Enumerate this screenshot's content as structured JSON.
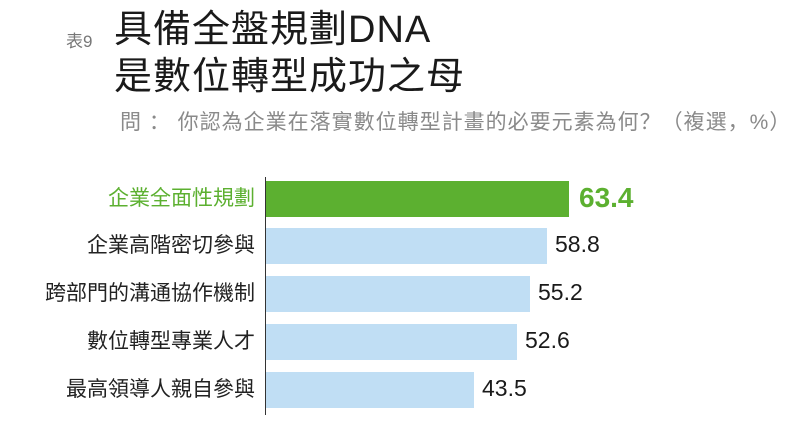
{
  "header": {
    "tag": "表9",
    "title_line1": "具備全盤規劃DNA",
    "title_line2": "是數位轉型成功之母",
    "question": "問 ： 你認為企業在落實數位轉型計畫的必要元素為何？（複選，%）"
  },
  "colors": {
    "highlight": "#5cb030",
    "bar": "#c0def4",
    "text": "#1a1a1a",
    "muted": "#8a8a8a"
  },
  "chart_data": {
    "type": "bar",
    "orientation": "horizontal",
    "title": "具備全盤規劃DNA 是數位轉型成功之母",
    "subtitle": "問：你認為企業在落實數位轉型計畫的必要元素為何？（複選，%）",
    "categories": [
      "企業全面性規劃",
      "企業高階密切參與",
      "跨部門的溝通協作機制",
      "數位轉型專業人才",
      "最高領導人親自參與"
    ],
    "values": [
      63.4,
      58.8,
      55.2,
      52.6,
      43.5
    ],
    "value_labels": [
      "63.4",
      "58.8",
      "55.2",
      "52.6",
      "43.5"
    ],
    "highlight_index": 0,
    "xlabel": "",
    "ylabel": "",
    "unit": "%",
    "grid": false,
    "legend": null
  }
}
